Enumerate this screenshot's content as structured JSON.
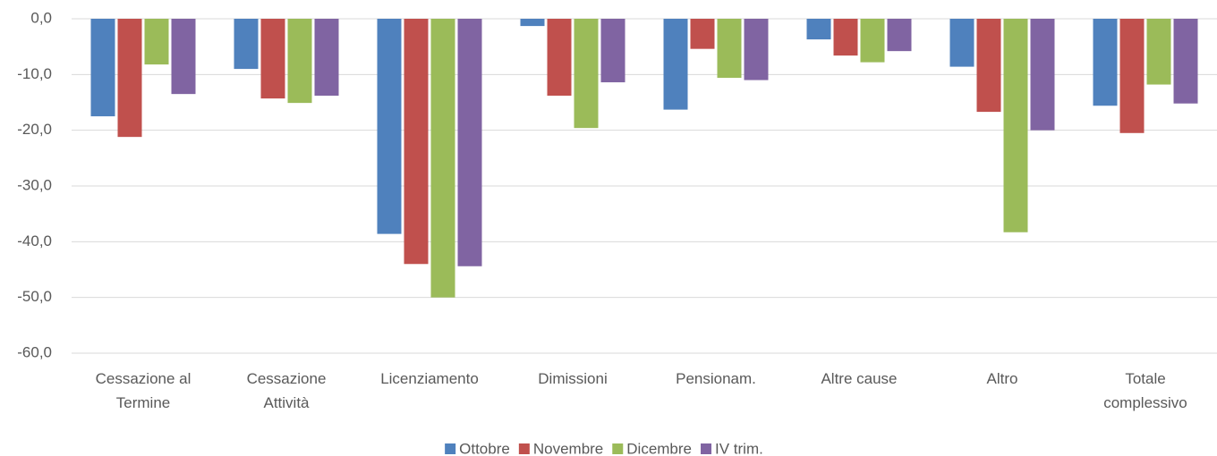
{
  "chart_data": {
    "type": "bar",
    "categories": [
      "Cessazione al Termine",
      "Cessazione Attività",
      "Licenziamento",
      "Dimissioni",
      "Pensionam.",
      "Altre cause",
      "Altro",
      "Totale complessivo"
    ],
    "series": [
      {
        "name": "Ottobre",
        "color": "#4f81bd",
        "values": [
          -17.5,
          -9.0,
          -38.6,
          -1.3,
          -16.3,
          -3.7,
          -8.6,
          -15.6
        ]
      },
      {
        "name": "Novembre",
        "color": "#c0504d",
        "values": [
          -21.2,
          -14.3,
          -44.0,
          -13.8,
          -5.4,
          -6.6,
          -16.7,
          -20.5
        ]
      },
      {
        "name": "Dicembre",
        "color": "#9bbb59",
        "values": [
          -8.2,
          -15.1,
          -50.0,
          -19.6,
          -10.6,
          -7.8,
          -38.3,
          -11.8
        ]
      },
      {
        "name": "IV trim.",
        "color": "#8064a2",
        "values": [
          -13.5,
          -13.8,
          -44.4,
          -11.4,
          -11.0,
          -5.8,
          -20.0,
          -15.2
        ]
      }
    ],
    "ylim": [
      -60,
      0
    ],
    "yticks": [
      {
        "value": 0,
        "label": "0,0"
      },
      {
        "value": -10,
        "label": "-10,0"
      },
      {
        "value": -20,
        "label": "-20,0"
      },
      {
        "value": -30,
        "label": "-30,0"
      },
      {
        "value": -40,
        "label": "-40,0"
      },
      {
        "value": -50,
        "label": "-50,0"
      },
      {
        "value": -60,
        "label": "-60,0"
      }
    ],
    "grid": true,
    "legend": "bottom"
  }
}
